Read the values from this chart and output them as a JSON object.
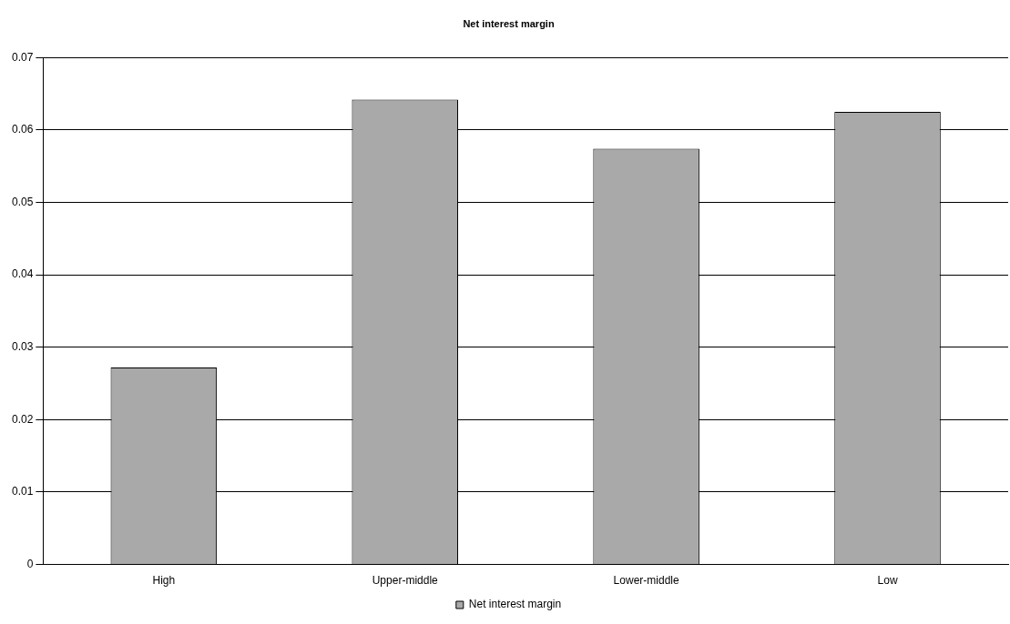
{
  "chart_data": {
    "type": "bar",
    "title": "Net interest margin",
    "categories": [
      "High",
      "Upper-middle",
      "Lower-middle",
      "Low"
    ],
    "series": [
      {
        "name": "Net interest margin",
        "color": "#a9a9a9",
        "values": [
          0.0272,
          0.0642,
          0.0574,
          0.0625
        ]
      }
    ],
    "ylim": [
      0,
      0.07
    ],
    "yticks": [
      0,
      0.01,
      0.02,
      0.03,
      0.04,
      0.05,
      0.06,
      0.07
    ],
    "grid": "y",
    "legend": "bottom"
  }
}
